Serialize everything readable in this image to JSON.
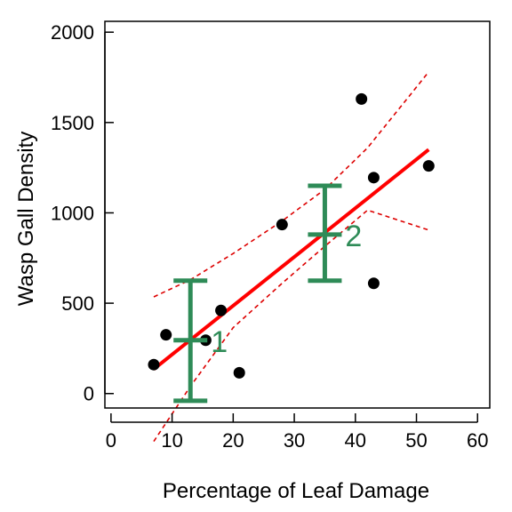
{
  "chart_data": {
    "type": "scatter",
    "xlabel": "Percentage of Leaf Damage",
    "ylabel": "Wasp Gall Density",
    "xlim": [
      -1,
      62
    ],
    "ylim": [
      -80,
      2060
    ],
    "x_ticks": [
      0,
      10,
      20,
      30,
      40,
      50,
      60
    ],
    "y_ticks": [
      0,
      500,
      1000,
      1500,
      2000
    ],
    "grid": false,
    "legend": "none",
    "points": [
      {
        "x": 7,
        "y": 160
      },
      {
        "x": 9,
        "y": 325
      },
      {
        "x": 15.5,
        "y": 295
      },
      {
        "x": 18,
        "y": 460
      },
      {
        "x": 21,
        "y": 115
      },
      {
        "x": 28,
        "y": 935
      },
      {
        "x": 41,
        "y": 1630
      },
      {
        "x": 43,
        "y": 1195
      },
      {
        "x": 43,
        "y": 610
      },
      {
        "x": 52,
        "y": 1260
      }
    ],
    "fit_line": {
      "x": [
        7,
        52
      ],
      "y": [
        135,
        1350
      ]
    },
    "confidence_band": {
      "upper": {
        "x": [
          7,
          13,
          20,
          28,
          35,
          42,
          52
        ],
        "y": [
          535,
          630,
          775,
          955,
          1130,
          1360,
          1780
        ]
      },
      "lower": {
        "x": [
          7,
          13,
          20,
          28,
          35,
          42,
          52
        ],
        "y": [
          -265,
          40,
          365,
          610,
          815,
          1015,
          905
        ]
      }
    },
    "error_bars": [
      {
        "label": "1",
        "x": 13,
        "y": 295,
        "lower": -40,
        "upper": 625
      },
      {
        "label": "2",
        "x": 35,
        "y": 880,
        "lower": 625,
        "upper": 1150
      }
    ],
    "colors": {
      "points": "#000000",
      "fit_line": "#ff0000",
      "band": "#dd0000",
      "error_bars": "#2e8b57"
    }
  }
}
